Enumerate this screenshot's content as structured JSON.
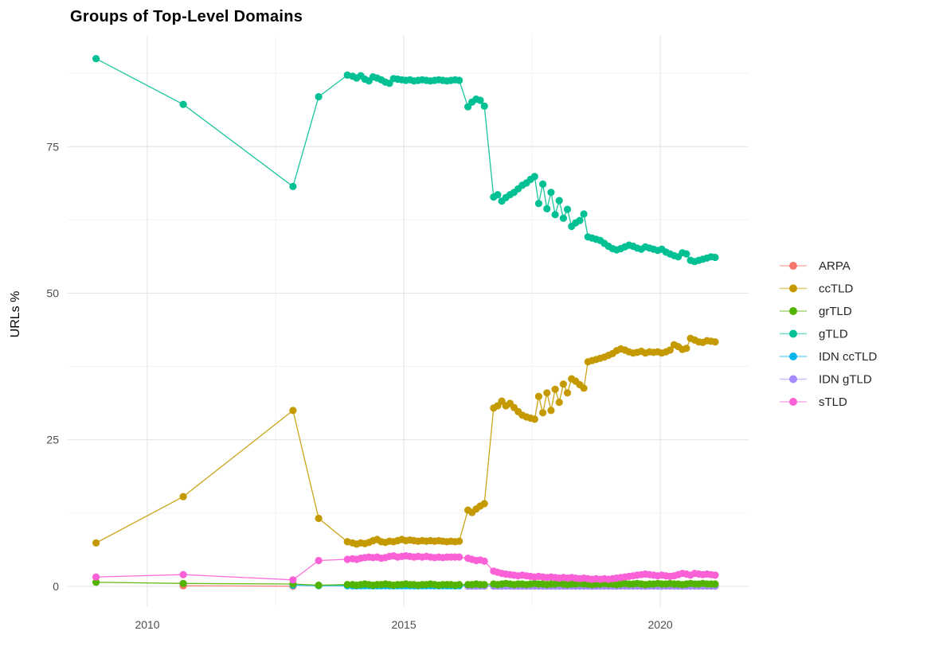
{
  "chart_data": {
    "type": "scatter",
    "title": "Groups of Top-Level Domains",
    "xlabel": "",
    "ylabel": "URLs %",
    "grid": true,
    "legend_position": "right",
    "background_color": "#FFFFFF",
    "grid_major_color": "#E4E4E4",
    "grid_minor_color": "#F2F2F2",
    "tick_text_color": "#4D4D4D",
    "title_color": "#1A1A1A",
    "axis_title_color": "#222222",
    "legend_text_color": "#262626",
    "xlim": [
      2008.447,
      2021.722
    ],
    "ylim": [
      -3.4,
      93.9
    ],
    "x_ticks": [
      2010,
      2015,
      2020
    ],
    "x_tick_labels": [
      "2010",
      "2015",
      "2020"
    ],
    "x_minor_ticks": [
      2012.5,
      2017.5
    ],
    "y_ticks": [
      0,
      25,
      50,
      75
    ],
    "y_tick_labels": [
      "0",
      "25",
      "50",
      "75"
    ],
    "y_minor_ticks": [
      12.5,
      37.5,
      62.5,
      87.5
    ],
    "x_dense": [
      2009,
      2010.7,
      2012.84,
      2013.34,
      2013.9,
      2014,
      2014.08,
      2014.16,
      2014.24,
      2014.32,
      2014.4,
      2014.48,
      2014.56,
      2014.64,
      2014.72,
      2014.8,
      2014.88,
      2014.96,
      2015.04,
      2015.12,
      2015.2,
      2015.28,
      2015.36,
      2015.44,
      2015.52,
      2015.6,
      2015.68,
      2015.76,
      2015.84,
      2015.92,
      2016,
      2016.08,
      2016.25,
      2016.33,
      2016.41,
      2016.49,
      2016.57,
      2016.75,
      2016.83,
      2016.91,
      2016.99,
      2017.07,
      2017.15,
      2017.23,
      2017.31,
      2017.39,
      2017.47,
      2017.55,
      2017.63,
      2017.71,
      2017.79,
      2017.87,
      2017.95,
      2018.03,
      2018.11,
      2018.19,
      2018.27,
      2018.35,
      2018.43,
      2018.51,
      2018.59,
      2018.67,
      2018.75,
      2018.83,
      2018.91,
      2018.99,
      2019.07,
      2019.15,
      2019.23,
      2019.31,
      2019.39,
      2019.47,
      2019.55,
      2019.63,
      2019.71,
      2019.79,
      2019.87,
      2019.95,
      2020.03,
      2020.11,
      2020.19,
      2020.27,
      2020.35,
      2020.43,
      2020.51,
      2020.59,
      2020.67,
      2020.75,
      2020.83,
      2020.91,
      2020.99,
      2021.07
    ],
    "series": [
      {
        "name": "ARPA",
        "color": "#F8766D",
        "x_list": [
          2010.7,
          2012.84
        ],
        "y": [
          0.1,
          0.03
        ]
      },
      {
        "name": "ccTLD",
        "color": "#C49A00",
        "x_offset": 0,
        "y": [
          7.4,
          15.3,
          30,
          11.6,
          7.6,
          7.4,
          7.2,
          7.4,
          7.3,
          7.5,
          7.8,
          8,
          7.6,
          7.5,
          7.7,
          7.6,
          7.8,
          8,
          7.8,
          7.9,
          7.8,
          7.7,
          7.8,
          7.7,
          7.8,
          7.7,
          7.8,
          7.7,
          7.6,
          7.7,
          7.6,
          7.7,
          13,
          12.6,
          13.2,
          13.7,
          14.1,
          30.4,
          30.8,
          31.6,
          30.8,
          31.2,
          30.5,
          29.8,
          29.2,
          28.9,
          28.7,
          28.5,
          32.4,
          29.6,
          33,
          30,
          33.6,
          31.4,
          34.5,
          33,
          35.4,
          35,
          34.4,
          33.8,
          38.3,
          38.5,
          38.7,
          38.9,
          39.1,
          39.4,
          39.7,
          40.2,
          40.5,
          40.3,
          40,
          39.8,
          39.9,
          40.1,
          39.8,
          40,
          39.9,
          40,
          39.8,
          40,
          40.3,
          41.2,
          40.9,
          40.4,
          40.6,
          42.3,
          42,
          41.7,
          41.6,
          41.9,
          41.8,
          41.7
        ]
      },
      {
        "name": "grTLD",
        "color": "#53B400",
        "x_offset": 0,
        "y": [
          0.7,
          0.5,
          0.4,
          0.2,
          0.3,
          0.3,
          0.2,
          0.3,
          0.4,
          0.3,
          0.2,
          0.3,
          0.3,
          0.4,
          0.3,
          0.2,
          0.3,
          0.3,
          0.4,
          0.3,
          0.3,
          0.2,
          0.3,
          0.3,
          0.4,
          0.3,
          0.2,
          0.3,
          0.3,
          0.3,
          0.2,
          0.3,
          0.3,
          0.3,
          0.4,
          0.3,
          0.3,
          0.4,
          0.3,
          0.4,
          0.5,
          0.4,
          0.3,
          0.4,
          0.4,
          0.3,
          0.4,
          0.5,
          0.4,
          0.4,
          0.3,
          0.4,
          0.4,
          0.5,
          0.4,
          0.3,
          0.4,
          0.4,
          0.5,
          0.4,
          0.4,
          0.3,
          0.4,
          0.4,
          0.5,
          0.4,
          0.4,
          0.3,
          0.4,
          0.5,
          0.4,
          0.4,
          0.5,
          0.4,
          0.3,
          0.4,
          0.4,
          0.5,
          0.4,
          0.4,
          0.5,
          0.4,
          0.4,
          0.3,
          0.4,
          0.5,
          0.4,
          0.4,
          0.5,
          0.4,
          0.4,
          0.4
        ]
      },
      {
        "name": "gTLD",
        "color": "#00C094",
        "x_offset": 0,
        "y": [
          90,
          82.2,
          68.2,
          83.5,
          87.2,
          87,
          86.7,
          87.1,
          86.5,
          86.2,
          86.9,
          86.7,
          86.4,
          86,
          85.8,
          86.6,
          86.5,
          86.4,
          86.3,
          86.4,
          86.2,
          86.3,
          86.4,
          86.3,
          86.2,
          86.3,
          86.4,
          86.3,
          86.2,
          86.3,
          86.4,
          86.3,
          81.8,
          82.6,
          83.1,
          82.9,
          81.9,
          66.4,
          66.8,
          65.7,
          66.3,
          66.8,
          67.2,
          67.8,
          68.4,
          68.8,
          69.4,
          69.9,
          65.3,
          68.6,
          64.4,
          67.2,
          63.4,
          65.8,
          62.8,
          64.3,
          61.4,
          62,
          62.4,
          63.5,
          59.6,
          59.4,
          59.2,
          59,
          58.5,
          58,
          57.6,
          57.4,
          57.6,
          57.9,
          58.2,
          58,
          57.7,
          57.5,
          57.9,
          57.7,
          57.5,
          57.3,
          57.5,
          57,
          56.7,
          56.4,
          56.2,
          56.9,
          56.7,
          55.6,
          55.4,
          55.6,
          55.8,
          56,
          56.2,
          56.1
        ]
      },
      {
        "name": "IDN ccTLD",
        "color": "#00B6EB",
        "x_offset": 2,
        "y": [
          0.2,
          0.12,
          0.1,
          0.1,
          0.08,
          0.1,
          0.12,
          0.1,
          0.08,
          0.1,
          0.1,
          0.12,
          0.1,
          0.08,
          0.1,
          0.1,
          0.12,
          0.1,
          0.1,
          0.08,
          0.1,
          0.1,
          0.12,
          0.1,
          0.08,
          0.1,
          0.1,
          0.1,
          0.08,
          0.1,
          0.1,
          0.08,
          0.1,
          0.09,
          0.1,
          0.08,
          0.07,
          0.08,
          0.06,
          0.07,
          0.08,
          0.07,
          0.06,
          0.07,
          0.08,
          0.07,
          0.06,
          0.07,
          0.07,
          0.08,
          0.07,
          0.06,
          0.07,
          0.07,
          0.08,
          0.07,
          0.06,
          0.07,
          0.07,
          0.06,
          0.07,
          0.08,
          0.07,
          0.06,
          0.07,
          0.07,
          0.08,
          0.07,
          0.06,
          0.07,
          0.07,
          0.06,
          0.07,
          0.08,
          0.07,
          0.06,
          0.07,
          0.07,
          0.08,
          0.07,
          0.06,
          0.07,
          0.07,
          0.06,
          0.07,
          0.07,
          0.08,
          0.07,
          0.06,
          0.07
        ]
      },
      {
        "name": "IDN gTLD",
        "color": "#A58AFF",
        "x_offset": 32,
        "y": [
          0.05,
          0.04,
          0.05,
          0.06,
          0.05,
          0.05,
          0.04,
          0.05,
          0.06,
          0.05,
          0.04,
          0.05,
          0.05,
          0.04,
          0.05,
          0.06,
          0.05,
          0.05,
          0.04,
          0.05,
          0.05,
          0.06,
          0.05,
          0.04,
          0.05,
          0.05,
          0.06,
          0.05,
          0.05,
          0.04,
          0.05,
          0.05,
          0.06,
          0.05,
          0.05,
          0.04,
          0.05,
          0.06,
          0.05,
          0.05,
          0.06,
          0.05,
          0.04,
          0.05,
          0.05,
          0.06,
          0.05,
          0.05,
          0.06,
          0.05,
          0.05,
          0.04,
          0.05,
          0.06,
          0.05,
          0.05,
          0.06,
          0.05,
          0.05,
          0.05
        ]
      },
      {
        "name": "sTLD",
        "color": "#FB61D7",
        "x_offset": 0,
        "y": [
          1.6,
          2,
          1.1,
          4.4,
          4.6,
          4.7,
          4.6,
          4.8,
          4.9,
          5,
          4.9,
          5,
          4.8,
          4.9,
          5.1,
          5.2,
          5,
          5.1,
          5.2,
          5.1,
          5,
          5.1,
          5,
          5.1,
          5,
          4.9,
          5,
          4.9,
          5,
          5,
          5,
          5,
          4.8,
          4.6,
          4.4,
          4.5,
          4.3,
          2.6,
          2.4,
          2.2,
          2.1,
          2,
          1.9,
          1.8,
          1.9,
          1.8,
          1.7,
          1.6,
          1.7,
          1.6,
          1.5,
          1.6,
          1.5,
          1.4,
          1.5,
          1.4,
          1.5,
          1.4,
          1.3,
          1.4,
          1.3,
          1.2,
          1.3,
          1.2,
          1.3,
          1.2,
          1.3,
          1.4,
          1.5,
          1.6,
          1.7,
          1.8,
          1.9,
          2,
          2.1,
          2,
          1.9,
          1.8,
          1.9,
          1.8,
          1.7,
          1.8,
          2,
          2.2,
          2.1,
          1.9,
          2.2,
          2.1,
          2,
          2.1,
          2,
          1.9
        ]
      }
    ],
    "draw_order": [
      "ARPA",
      "IDN ccTLD",
      "IDN gTLD",
      "ccTLD",
      "grTLD",
      "gTLD",
      "sTLD"
    ]
  }
}
